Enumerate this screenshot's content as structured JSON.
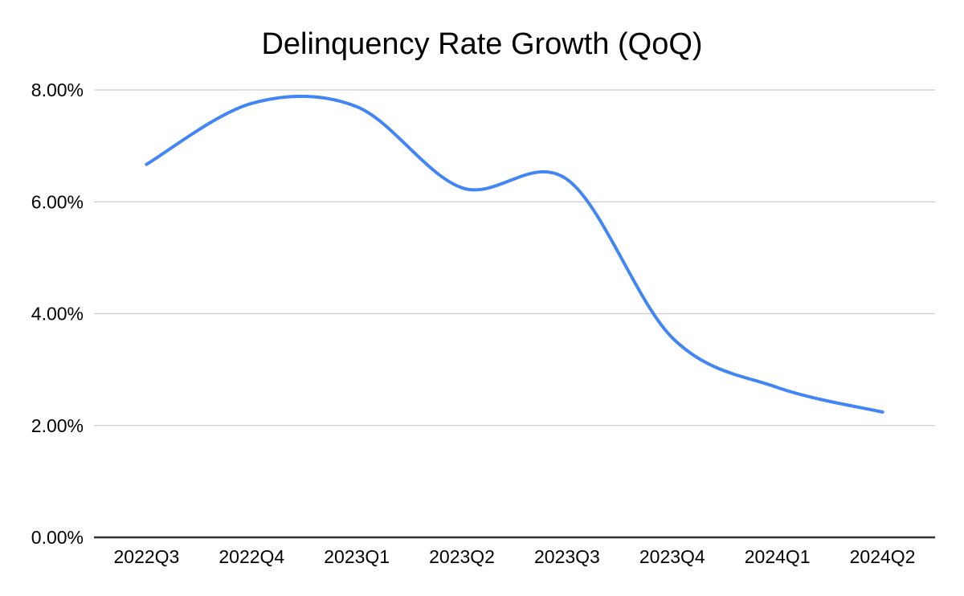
{
  "chart_data": {
    "type": "line",
    "title": "Delinquency Rate Growth (QoQ)",
    "categories": [
      "2022Q3",
      "2022Q4",
      "2023Q1",
      "2023Q2",
      "2023Q3",
      "2023Q4",
      "2024Q1",
      "2024Q2"
    ],
    "values": [
      6.67,
      7.76,
      7.7,
      6.25,
      6.4,
      3.57,
      2.68,
      2.24
    ],
    "unit": "%",
    "xlabel": "",
    "ylabel": "",
    "ylim": [
      0,
      8
    ],
    "y_ticks": [
      {
        "value": 0,
        "label": "0.00%"
      },
      {
        "value": 2,
        "label": "2.00%"
      },
      {
        "value": 4,
        "label": "4.00%"
      },
      {
        "value": 6,
        "label": "6.00%"
      },
      {
        "value": 8,
        "label": "8.00%"
      }
    ],
    "grid": true,
    "legend": "none",
    "smooth": true,
    "colors": {
      "series_line": "#4285f4",
      "gridline": "#cccccc",
      "axis_line": "#333333",
      "text": "#000000",
      "background": "#ffffff"
    }
  }
}
